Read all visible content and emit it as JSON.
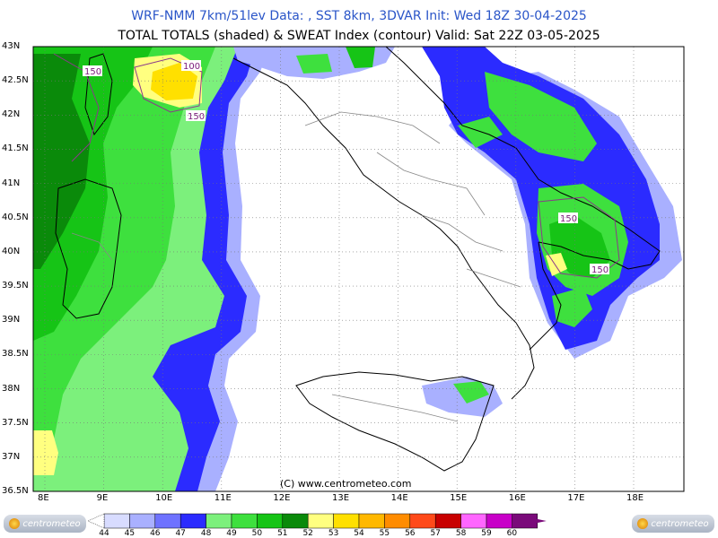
{
  "header": {
    "line1": "WRF-NMM 7km/51lev   Data: , SST 8km, 3DVAR   Init: Wed 18Z 30-04-2025",
    "line2": "TOTAL TOTALS (shaded) & SWEAT Index (contour)   Valid: Sat 22Z 03-05-2025"
  },
  "axes": {
    "lat_labels": [
      "43N",
      "42.5N",
      "42N",
      "41.5N",
      "41N",
      "40.5N",
      "40N",
      "39.5N",
      "39N",
      "38.5N",
      "38N",
      "37.5N",
      "37N",
      "36.5N"
    ],
    "lon_labels": [
      "8E",
      "9E",
      "10E",
      "11E",
      "12E",
      "13E",
      "14E",
      "15E",
      "16E",
      "17E",
      "18E"
    ]
  },
  "contour_labels": [
    "150",
    "100",
    "150",
    "150",
    "150"
  ],
  "copyright": "(C) www.centrometeo.com",
  "logo_text": "centrometeo",
  "colorbar": {
    "labels": [
      "44",
      "45",
      "46",
      "47",
      "48",
      "49",
      "50",
      "51",
      "52",
      "53",
      "54",
      "55",
      "56",
      "57",
      "58",
      "59",
      "60"
    ],
    "colors": [
      "#d8dcff",
      "#a9b0ff",
      "#6e72ff",
      "#2b2bff",
      "#7cf07c",
      "#3ee03e",
      "#16c416",
      "#0a8a0a",
      "#ffff80",
      "#ffe000",
      "#ffb800",
      "#ff8c00",
      "#ff4a1a",
      "#c80000",
      "#ff66ff",
      "#c800c8",
      "#7a0a7a"
    ]
  }
}
